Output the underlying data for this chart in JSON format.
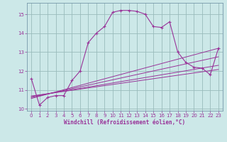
{
  "xlabel": "Windchill (Refroidissement éolien,°C)",
  "background_color": "#cce8e8",
  "line_color": "#993399",
  "grid_color": "#99bbbb",
  "xlim": [
    -0.5,
    23.5
  ],
  "ylim": [
    9.9,
    15.6
  ],
  "yticks": [
    10,
    11,
    12,
    13,
    14,
    15
  ],
  "xticks": [
    0,
    1,
    2,
    3,
    4,
    5,
    6,
    7,
    8,
    9,
    10,
    11,
    12,
    13,
    14,
    15,
    16,
    17,
    18,
    19,
    20,
    21,
    22,
    23
  ],
  "curve1_x": [
    0,
    1,
    2,
    3,
    4,
    5,
    6,
    7,
    8,
    9,
    10,
    11,
    12,
    13,
    14,
    15,
    16,
    17,
    18,
    19,
    20,
    21,
    22,
    23
  ],
  "curve1_y": [
    11.6,
    10.2,
    10.6,
    10.7,
    10.7,
    11.5,
    12.0,
    13.5,
    14.0,
    14.35,
    15.1,
    15.2,
    15.2,
    15.15,
    15.0,
    14.35,
    14.3,
    14.6,
    13.0,
    12.45,
    12.2,
    12.15,
    11.8,
    13.2
  ],
  "line1_x": [
    0,
    23
  ],
  "line1_y": [
    10.55,
    13.2
  ],
  "line2_x": [
    0,
    23
  ],
  "line2_y": [
    10.6,
    12.75
  ],
  "line3_x": [
    0,
    23
  ],
  "line3_y": [
    10.65,
    12.3
  ],
  "line4_x": [
    0,
    23
  ],
  "line4_y": [
    10.68,
    12.08
  ]
}
